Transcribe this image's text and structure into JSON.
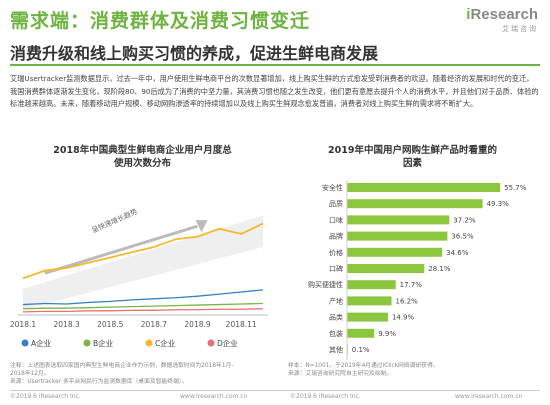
{
  "header": {
    "title": "需求端：消费群体及消费习惯变迁",
    "subtitle": "消费升级和线上购买习惯的养成，促进生鲜电商发展",
    "logo_main": "Research",
    "logo_i": "i",
    "logo_sub": "艾瑞咨询"
  },
  "body_text": "艾瑞Usertracker监测数据显示，过去一年中，用户使用生鲜电商平台的次数显著增加，线上购买生鲜的方式愈发受到消费者的欢迎。随着经济的发展和时代的变迁，我国消费群体逐渐发生变化，现阶段80、90后成为了消费的中坚力量，其消费习惯也随之发生改变，他们更有意愿去提升个人的消费水平，并且他们对于品质、体验的标准越来越高。未来，随着移动用户规模、移动网购渗透率的持续增加以及线上购买生鲜观念愈发普遍，消费者对线上购买生鲜的需求将不断扩大。",
  "left_chart": {
    "title_line1": "2018年中国典型生鲜电商企业用户月度总",
    "title_line2": "使用次数分布",
    "annotation": "呈快速增长趋势",
    "notes_line1": "注释：上述图表选取四家国内典型生鲜电商企业作为示例，数据选取时间为2018年1月-",
    "notes_line2": "2018年12月。",
    "notes_line3": "来源：Usertracker 多平台网民行为监测数据库（桌面及智能终端）。",
    "footer": "©2019.6 iResearch Inc.",
    "footer_right": "www.iresearch.com.cn"
  },
  "right_chart": {
    "title_line1": "2019年中国用户网购生鲜产品时看重的",
    "title_line2": "因素",
    "notes_line1": "样本：N=1001，于2019年4月通过iClick网络调研获得。",
    "notes_line2": "来源：艾瑞咨询研究院自主研究及绘制。",
    "footer": "©2019.6 iResearch Inc.",
    "footer_right": "www.iresearch.com.cn"
  },
  "colors": {
    "green": "#6db33f",
    "bar_green": "#8cc63f",
    "series_a": "#3a7fc4",
    "series_b": "#7cb342",
    "series_c": "#f5b82e",
    "series_d": "#e57373"
  },
  "chart_data": [
    {
      "type": "line",
      "title": "2018年中国典型生鲜电商企业用户月度总使用次数分布",
      "x": [
        "2018.1",
        "2018.2",
        "2018.3",
        "2018.4",
        "2018.5",
        "2018.6",
        "2018.7",
        "2018.8",
        "2018.9",
        "2018.10",
        "2018.11",
        "2018.12"
      ],
      "x_tick_labels": [
        "2018.1",
        "2018.3",
        "2018.5",
        "2018.7",
        "2018.9",
        "2018.11"
      ],
      "series": [
        {
          "name": "A企业",
          "values": [
            2,
            2.2,
            2.1,
            2.4,
            2.6,
            2.9,
            3.1,
            3.3,
            3.6,
            4.0,
            4.4,
            4.8
          ]
        },
        {
          "name": "B企业",
          "values": [
            1.2,
            1.3,
            1.3,
            1.4,
            1.5,
            1.6,
            1.7,
            1.8,
            1.9,
            2.0,
            2.1,
            2.2
          ]
        },
        {
          "name": "C企业",
          "values": [
            7,
            8.5,
            9,
            10,
            11,
            12,
            13,
            14.5,
            15,
            16.5,
            15.5,
            17.5
          ]
        },
        {
          "name": "D企业",
          "values": [
            0.6,
            0.7,
            0.7,
            0.8,
            0.8,
            0.9,
            0.9,
            1.0,
            1.0,
            1.1,
            1.1,
            1.2
          ]
        }
      ],
      "ylim": [
        0,
        22
      ],
      "grid": false,
      "legend": "bottom"
    },
    {
      "type": "bar",
      "orientation": "horizontal",
      "title": "2019年中国用户网购生鲜产品时看重的因素",
      "categories": [
        "安全性",
        "品质",
        "口味",
        "品牌",
        "价格",
        "口碑",
        "购买便捷性",
        "产地",
        "品类",
        "包装",
        "其他"
      ],
      "values": [
        55.7,
        49.3,
        37.2,
        36.5,
        34.6,
        28.1,
        17.7,
        16.2,
        14.9,
        9.9,
        0.1
      ],
      "value_labels": [
        "55.7%",
        "49.3%",
        "37.2%",
        "36.5%",
        "34.6%",
        "28.1%",
        "17.7%",
        "16.2%",
        "14.9%",
        "9.9%",
        "0.1%"
      ],
      "xlim": [
        0,
        60
      ]
    }
  ]
}
